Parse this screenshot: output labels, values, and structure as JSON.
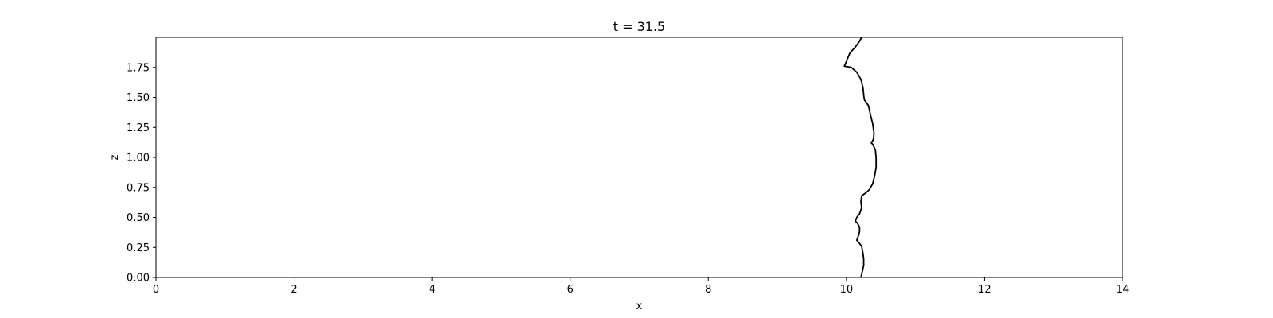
{
  "chart_data": {
    "type": "line",
    "title": "t = 31.5",
    "xlabel": "x",
    "ylabel": "z",
    "xlim": [
      0,
      14
    ],
    "ylim": [
      0,
      2.0
    ],
    "grid": false,
    "x_ticks": [
      0,
      2,
      4,
      6,
      8,
      10,
      12,
      14
    ],
    "x_tick_labels": [
      "0",
      "2",
      "4",
      "6",
      "8",
      "10",
      "12",
      "14"
    ],
    "y_ticks": [
      0.0,
      0.25,
      0.5,
      0.75,
      1.0,
      1.25,
      1.5,
      1.75
    ],
    "y_tick_labels": [
      "0.00",
      "0.25",
      "0.50",
      "0.75",
      "1.00",
      "1.25",
      "1.50",
      "1.75"
    ],
    "series": [
      {
        "color": "#000000",
        "points": [
          [
            10.21,
            0.0
          ],
          [
            10.23,
            0.05
          ],
          [
            10.25,
            0.1
          ],
          [
            10.25,
            0.15
          ],
          [
            10.24,
            0.2
          ],
          [
            10.22,
            0.26
          ],
          [
            10.18,
            0.29
          ],
          [
            10.15,
            0.31
          ],
          [
            10.17,
            0.34
          ],
          [
            10.19,
            0.38
          ],
          [
            10.19,
            0.42
          ],
          [
            10.16,
            0.45
          ],
          [
            10.13,
            0.47
          ],
          [
            10.15,
            0.5
          ],
          [
            10.19,
            0.53
          ],
          [
            10.22,
            0.58
          ],
          [
            10.21,
            0.63
          ],
          [
            10.22,
            0.68
          ],
          [
            10.27,
            0.7
          ],
          [
            10.33,
            0.73
          ],
          [
            10.38,
            0.78
          ],
          [
            10.41,
            0.85
          ],
          [
            10.43,
            0.92
          ],
          [
            10.43,
            0.99
          ],
          [
            10.42,
            1.06
          ],
          [
            10.38,
            1.11
          ],
          [
            10.36,
            1.12
          ],
          [
            10.39,
            1.15
          ],
          [
            10.4,
            1.2
          ],
          [
            10.38,
            1.28
          ],
          [
            10.35,
            1.35
          ],
          [
            10.32,
            1.43
          ],
          [
            10.26,
            1.48
          ],
          [
            10.25,
            1.52
          ],
          [
            10.24,
            1.58
          ],
          [
            10.21,
            1.65
          ],
          [
            10.15,
            1.71
          ],
          [
            10.07,
            1.75
          ],
          [
            9.97,
            1.76
          ],
          [
            10.0,
            1.8
          ],
          [
            10.05,
            1.87
          ],
          [
            10.13,
            1.92
          ],
          [
            10.18,
            1.96
          ],
          [
            10.22,
            2.0
          ]
        ]
      }
    ]
  }
}
